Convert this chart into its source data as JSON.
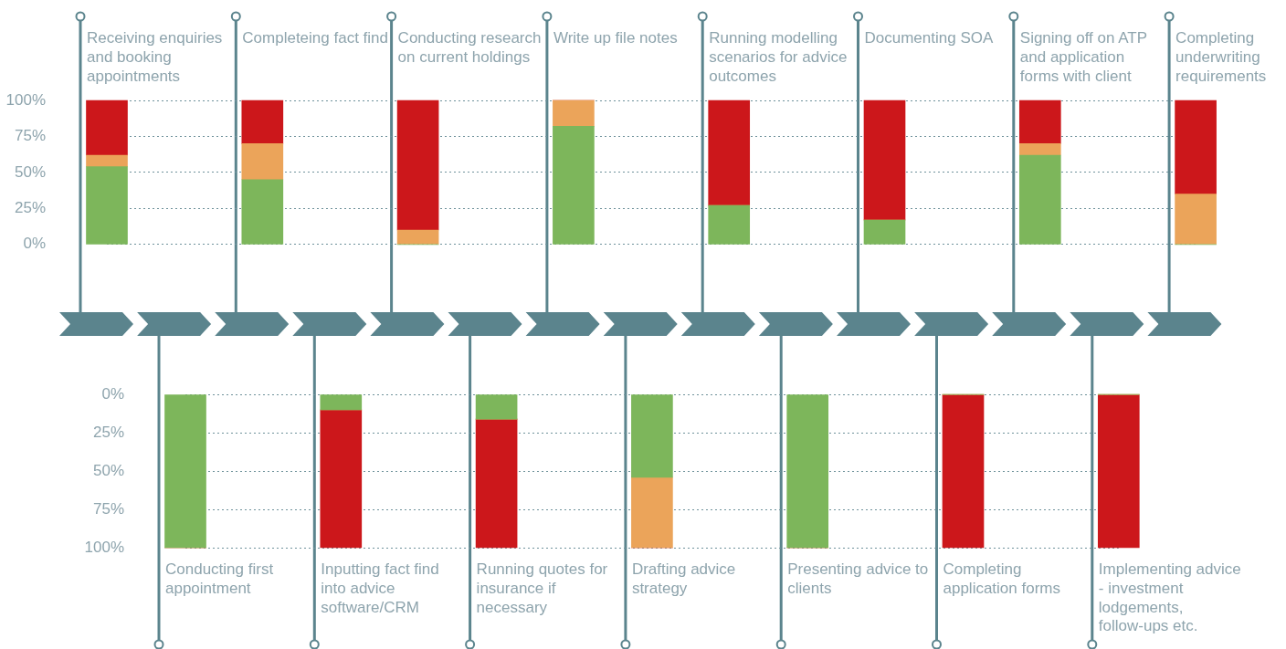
{
  "chart_data": [
    {
      "type": "bar",
      "stacked": true,
      "categories": [
        "Receiving enquiries and booking appointments",
        "Completeing fact find",
        "Conducting research on current holdings",
        "Write up file notes",
        "Running modelling scenarios for advice outcomes",
        "Documenting SOA",
        "Signing off on ATP and application forms with client",
        "Completing underwriting requirements"
      ],
      "series": [
        {
          "color": "#7db65b",
          "values": [
            54,
            45,
            0,
            82,
            27,
            17,
            62,
            0
          ]
        },
        {
          "color": "#eba45a",
          "values": [
            8,
            25,
            10,
            18,
            0,
            0,
            8,
            35
          ]
        },
        {
          "color": "#cc171b",
          "values": [
            38,
            30,
            90,
            0,
            73,
            83,
            30,
            65
          ]
        }
      ],
      "ylim": [
        0,
        100
      ],
      "yticks": [
        {
          "value": 0,
          "label": "0%"
        },
        {
          "value": 25,
          "label": "25%"
        },
        {
          "value": 50,
          "label": "50%"
        },
        {
          "value": 75,
          "label": "75%"
        },
        {
          "value": 100,
          "label": "100%"
        }
      ],
      "grid": "y"
    },
    {
      "type": "bar",
      "stacked": true,
      "categories": [
        "Conducting first appointment",
        "Inputting fact find into advice software/CRM",
        "Running quotes for insurance if necessary",
        "Drafting advice strategy",
        "Presenting advice to clients",
        "Completing application forms",
        "Implementing advice - investment lodgements, follow-ups etc."
      ],
      "series": [
        {
          "color": "#7db65b",
          "values": [
            100,
            10,
            16,
            54,
            100,
            0,
            0
          ]
        },
        {
          "color": "#eba45a",
          "values": [
            0,
            0,
            0,
            46,
            0,
            0,
            0
          ]
        },
        {
          "color": "#cc171b",
          "values": [
            0,
            90,
            84,
            0,
            0,
            100,
            100
          ]
        }
      ],
      "ylim": [
        100,
        0
      ],
      "yticks": [
        {
          "value": 0,
          "label": "0%"
        },
        {
          "value": 25,
          "label": "25%"
        },
        {
          "value": 50,
          "label": "50%"
        },
        {
          "value": 75,
          "label": "75%"
        },
        {
          "value": 100,
          "label": "100%"
        }
      ],
      "grid": "y"
    }
  ]
}
